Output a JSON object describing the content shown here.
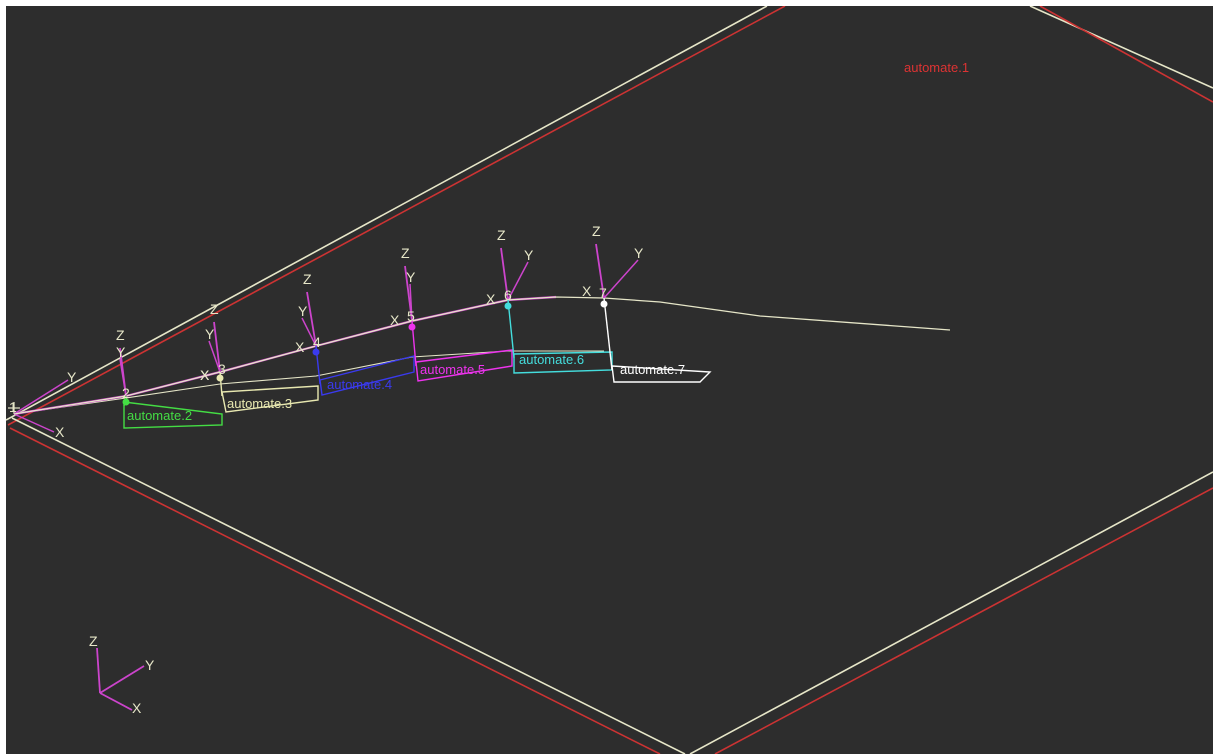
{
  "plane_label": "automate.1",
  "axes": {
    "x": "X",
    "y": "Y",
    "z": "Z"
  },
  "nodes": [
    {
      "number": "1"
    },
    {
      "number": "2",
      "label": "automate.2",
      "color": "#44dd44"
    },
    {
      "number": "3",
      "label": "automate.3",
      "color": "#e8e8b0"
    },
    {
      "number": "4",
      "label": "automate.4",
      "color": "#3a3aee"
    },
    {
      "number": "5",
      "label": "automate.5",
      "color": "#ee33ee"
    },
    {
      "number": "6",
      "label": "automate.6",
      "color": "#44dddd"
    },
    {
      "number": "7",
      "label": "automate.7",
      "color": "#ffffff"
    }
  ],
  "colors": {
    "background": "#2d2d2d",
    "plane_edge": "#cc3333",
    "plane_edge_inner": "#e6e6c8",
    "axis_line": "#cc44cc",
    "curve": "#e6e6c8",
    "plane_label": "#dd3333"
  }
}
